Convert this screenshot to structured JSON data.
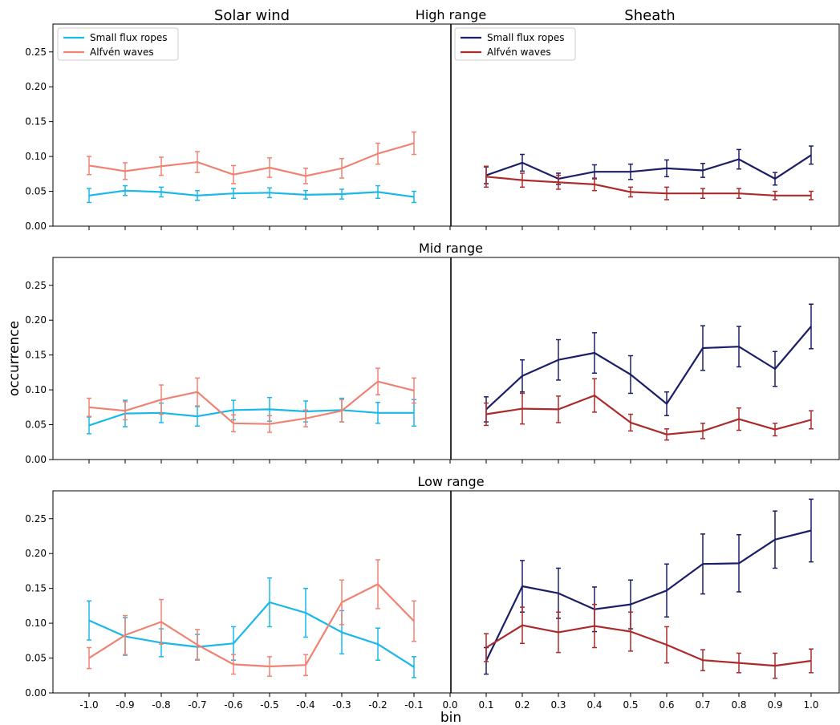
{
  "chart_data": {
    "type": "line",
    "column_titles": [
      "Solar wind",
      "Sheath"
    ],
    "ylabel": "occurrence",
    "xlabel": "bin",
    "x_ticks": [
      "-1.0",
      "-0.9",
      "-0.8",
      "-0.7",
      "-0.6",
      "-0.5",
      "-0.4",
      "-0.3",
      "-0.2",
      "-0.1",
      "0.0",
      "0.1",
      "0.2",
      "0.3",
      "0.4",
      "0.5",
      "0.6",
      "0.7",
      "0.8",
      "0.9",
      "1.0"
    ],
    "xlim": [
      -1.1,
      1.08
    ],
    "ylim": [
      0,
      0.29
    ],
    "y_ticks": [
      "0.00",
      "0.05",
      "0.10",
      "0.15",
      "0.20",
      "0.25"
    ],
    "legend": {
      "placement": "upper-left",
      "solar_wind": [
        {
          "name": "Small flux ropes",
          "color": "#1ab8e8"
        },
        {
          "name": "Alfvén waves",
          "color": "#f08272"
        }
      ],
      "sheath": [
        {
          "name": "Small flux ropes",
          "color": "#1c1f68"
        },
        {
          "name": "Alfvén waves",
          "color": "#ad2a2a"
        }
      ]
    },
    "panels": [
      {
        "title": "High range",
        "solar_wind": {
          "x": [
            -1.0,
            -0.9,
            -0.8,
            -0.7,
            -0.6,
            -0.5,
            -0.4,
            -0.3,
            -0.2,
            -0.1
          ],
          "series": [
            {
              "name": "Small flux ropes",
              "color": "#1ab8e8",
              "values": [
                0.044,
                0.051,
                0.049,
                0.044,
                0.047,
                0.048,
                0.045,
                0.046,
                0.049,
                0.042
              ],
              "errors": [
                0.01,
                0.007,
                0.007,
                0.007,
                0.007,
                0.007,
                0.006,
                0.007,
                0.009,
                0.008
              ]
            },
            {
              "name": "Alfvén waves",
              "color": "#f08272",
              "values": [
                0.087,
                0.079,
                0.086,
                0.092,
                0.074,
                0.084,
                0.072,
                0.083,
                0.104,
                0.119
              ],
              "errors": [
                0.013,
                0.012,
                0.013,
                0.015,
                0.013,
                0.014,
                0.011,
                0.014,
                0.015,
                0.016
              ]
            }
          ]
        },
        "sheath": {
          "x": [
            0.1,
            0.2,
            0.3,
            0.4,
            0.5,
            0.6,
            0.7,
            0.8,
            0.9,
            1.0
          ],
          "series": [
            {
              "name": "Small flux ropes",
              "color": "#1c1f68",
              "values": [
                0.073,
                0.091,
                0.068,
                0.078,
                0.078,
                0.083,
                0.08,
                0.096,
                0.068,
                0.102
              ],
              "errors": [
                0.012,
                0.012,
                0.008,
                0.01,
                0.011,
                0.012,
                0.01,
                0.014,
                0.009,
                0.013
              ]
            },
            {
              "name": "Alfvén waves",
              "color": "#ad2a2a",
              "values": [
                0.071,
                0.066,
                0.063,
                0.06,
                0.049,
                0.047,
                0.047,
                0.047,
                0.044,
                0.044
              ],
              "errors": [
                0.015,
                0.01,
                0.01,
                0.009,
                0.007,
                0.009,
                0.007,
                0.007,
                0.006,
                0.006
              ]
            }
          ]
        }
      },
      {
        "title": "Mid range",
        "solar_wind": {
          "x": [
            -1.0,
            -0.9,
            -0.8,
            -0.7,
            -0.6,
            -0.5,
            -0.4,
            -0.3,
            -0.2,
            -0.1
          ],
          "series": [
            {
              "name": "Small flux ropes",
              "color": "#1ab8e8",
              "values": [
                0.049,
                0.066,
                0.067,
                0.062,
                0.071,
                0.072,
                0.069,
                0.071,
                0.067,
                0.067
              ],
              "errors": [
                0.012,
                0.019,
                0.014,
                0.014,
                0.014,
                0.017,
                0.015,
                0.017,
                0.015,
                0.019
              ]
            },
            {
              "name": "Alfvén waves",
              "color": "#f08272",
              "values": [
                0.075,
                0.07,
                0.086,
                0.097,
                0.052,
                0.051,
                0.059,
                0.07,
                0.112,
                0.099
              ],
              "errors": [
                0.013,
                0.013,
                0.021,
                0.02,
                0.012,
                0.012,
                0.012,
                0.016,
                0.019,
                0.018
              ]
            }
          ]
        },
        "sheath": {
          "x": [
            0.1,
            0.2,
            0.3,
            0.4,
            0.5,
            0.6,
            0.7,
            0.8,
            0.9,
            1.0
          ],
          "series": [
            {
              "name": "Small flux ropes",
              "color": "#1c1f68",
              "values": [
                0.072,
                0.12,
                0.143,
                0.153,
                0.122,
                0.08,
                0.16,
                0.162,
                0.13,
                0.191
              ],
              "errors": [
                0.018,
                0.023,
                0.029,
                0.029,
                0.027,
                0.017,
                0.032,
                0.029,
                0.025,
                0.032
              ]
            },
            {
              "name": "Alfvén waves",
              "color": "#ad2a2a",
              "values": [
                0.065,
                0.073,
                0.072,
                0.092,
                0.053,
                0.036,
                0.041,
                0.058,
                0.043,
                0.057
              ],
              "errors": [
                0.016,
                0.022,
                0.019,
                0.024,
                0.012,
                0.008,
                0.011,
                0.016,
                0.009,
                0.013
              ]
            }
          ]
        }
      },
      {
        "title": "Low range",
        "solar_wind": {
          "x": [
            -1.0,
            -0.9,
            -0.8,
            -0.7,
            -0.6,
            -0.5,
            -0.4,
            -0.3,
            -0.2,
            -0.1
          ],
          "series": [
            {
              "name": "Small flux ropes",
              "color": "#1ab8e8",
              "values": [
                0.104,
                0.081,
                0.072,
                0.066,
                0.071,
                0.13,
                0.115,
                0.087,
                0.07,
                0.037
              ],
              "errors": [
                0.028,
                0.027,
                0.02,
                0.018,
                0.024,
                0.035,
                0.035,
                0.031,
                0.023,
                0.015
              ]
            },
            {
              "name": "Alfvén waves",
              "color": "#f08272",
              "values": [
                0.05,
                0.083,
                0.102,
                0.069,
                0.041,
                0.038,
                0.04,
                0.13,
                0.156,
                0.103
              ],
              "errors": [
                0.015,
                0.028,
                0.032,
                0.022,
                0.014,
                0.014,
                0.015,
                0.032,
                0.035,
                0.029
              ]
            }
          ]
        },
        "sheath": {
          "x": [
            0.1,
            0.2,
            0.3,
            0.4,
            0.5,
            0.6,
            0.7,
            0.8,
            0.9,
            1.0
          ],
          "series": [
            {
              "name": "Small flux ropes",
              "color": "#1c1f68",
              "values": [
                0.046,
                0.153,
                0.143,
                0.12,
                0.127,
                0.147,
                0.185,
                0.186,
                0.22,
                0.233
              ],
              "errors": [
                0.019,
                0.037,
                0.036,
                0.032,
                0.035,
                0.038,
                0.043,
                0.041,
                0.041,
                0.045
              ]
            },
            {
              "name": "Alfvén waves",
              "color": "#ad2a2a",
              "values": [
                0.065,
                0.097,
                0.087,
                0.096,
                0.088,
                0.069,
                0.047,
                0.043,
                0.039,
                0.046
              ],
              "errors": [
                0.02,
                0.026,
                0.029,
                0.031,
                0.028,
                0.026,
                0.015,
                0.014,
                0.018,
                0.017
              ]
            }
          ]
        }
      }
    ]
  }
}
